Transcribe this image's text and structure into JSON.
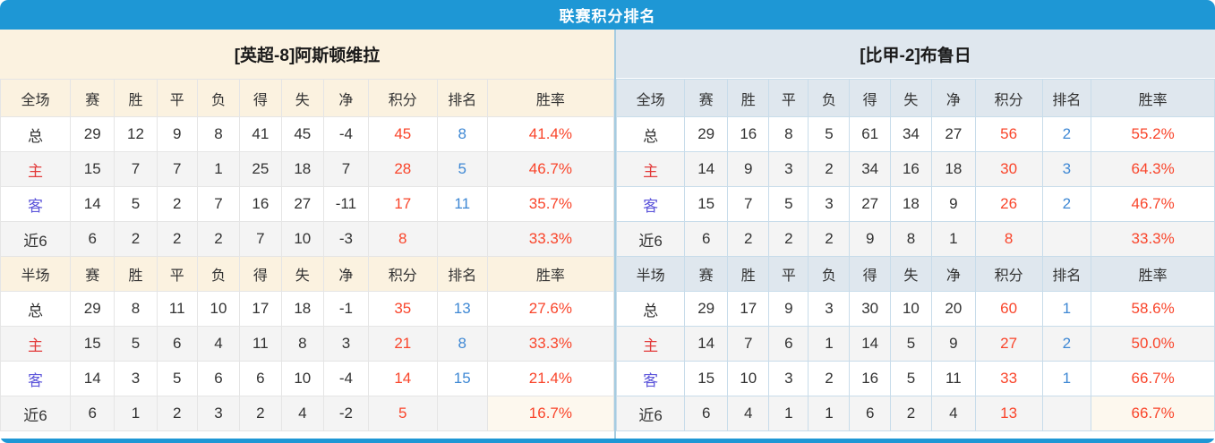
{
  "title": "联赛积分排名",
  "colors": {
    "accent_blue": "#1e97d5",
    "value_red": "#f9452b",
    "rank_blue": "#3f88d4",
    "home_label_red": "#e23a3a",
    "away_label_purple": "#5c55da",
    "left_panel_cream": "#fbf2e0",
    "right_panel_bluegray": "#dfe7ee",
    "row_stripe_gray": "#f4f4f4",
    "highlight_cream_cell": "#fdf8ee"
  },
  "columns_full": [
    "全场",
    "赛",
    "胜",
    "平",
    "负",
    "得",
    "失",
    "净",
    "积分",
    "排名",
    "胜率"
  ],
  "columns_half": [
    "半场",
    "赛",
    "胜",
    "平",
    "负",
    "得",
    "失",
    "净",
    "积分",
    "排名",
    "胜率"
  ],
  "teams": [
    {
      "name": "[英超-8]阿斯顿维拉",
      "full": {
        "rows": [
          {
            "label": "总",
            "type": "total",
            "cells": [
              29,
              12,
              9,
              8,
              41,
              45,
              "-4"
            ],
            "points": "45",
            "rank": "8",
            "rate": "41.4%"
          },
          {
            "label": "主",
            "type": "home",
            "cells": [
              15,
              7,
              7,
              1,
              25,
              18,
              "7"
            ],
            "points": "28",
            "rank": "5",
            "rate": "46.7%"
          },
          {
            "label": "客",
            "type": "away",
            "cells": [
              14,
              5,
              2,
              7,
              16,
              27,
              "-11"
            ],
            "points": "17",
            "rank": "11",
            "rate": "35.7%"
          },
          {
            "label": "近6",
            "type": "recent6",
            "cells": [
              6,
              2,
              2,
              2,
              7,
              10,
              "-3"
            ],
            "points": "8",
            "rank": "",
            "rate": "33.3%"
          }
        ]
      },
      "half": {
        "rows": [
          {
            "label": "总",
            "type": "total",
            "cells": [
              29,
              8,
              11,
              10,
              17,
              18,
              "-1"
            ],
            "points": "35",
            "rank": "13",
            "rate": "27.6%"
          },
          {
            "label": "主",
            "type": "home",
            "cells": [
              15,
              5,
              6,
              4,
              11,
              8,
              "3"
            ],
            "points": "21",
            "rank": "8",
            "rate": "33.3%"
          },
          {
            "label": "客",
            "type": "away",
            "cells": [
              14,
              3,
              5,
              6,
              6,
              10,
              "-4"
            ],
            "points": "14",
            "rank": "15",
            "rate": "21.4%"
          },
          {
            "label": "近6",
            "type": "recent6",
            "cells": [
              6,
              1,
              2,
              3,
              2,
              4,
              "-2"
            ],
            "points": "5",
            "rank": "",
            "rate": "16.7%"
          }
        ]
      }
    },
    {
      "name": "[比甲-2]布鲁日",
      "full": {
        "rows": [
          {
            "label": "总",
            "type": "total",
            "cells": [
              29,
              16,
              8,
              5,
              61,
              34,
              "27"
            ],
            "points": "56",
            "rank": "2",
            "rate": "55.2%"
          },
          {
            "label": "主",
            "type": "home",
            "cells": [
              14,
              9,
              3,
              2,
              34,
              16,
              "18"
            ],
            "points": "30",
            "rank": "3",
            "rate": "64.3%"
          },
          {
            "label": "客",
            "type": "away",
            "cells": [
              15,
              7,
              5,
              3,
              27,
              18,
              "9"
            ],
            "points": "26",
            "rank": "2",
            "rate": "46.7%"
          },
          {
            "label": "近6",
            "type": "recent6",
            "cells": [
              6,
              2,
              2,
              2,
              9,
              8,
              "1"
            ],
            "points": "8",
            "rank": "",
            "rate": "33.3%"
          }
        ]
      },
      "half": {
        "rows": [
          {
            "label": "总",
            "type": "total",
            "cells": [
              29,
              17,
              9,
              3,
              30,
              10,
              "20"
            ],
            "points": "60",
            "rank": "1",
            "rate": "58.6%"
          },
          {
            "label": "主",
            "type": "home",
            "cells": [
              14,
              7,
              6,
              1,
              14,
              5,
              "9"
            ],
            "points": "27",
            "rank": "2",
            "rate": "50.0%"
          },
          {
            "label": "客",
            "type": "away",
            "cells": [
              15,
              10,
              3,
              2,
              16,
              5,
              "11"
            ],
            "points": "33",
            "rank": "1",
            "rate": "66.7%"
          },
          {
            "label": "近6",
            "type": "recent6",
            "cells": [
              6,
              4,
              1,
              1,
              6,
              2,
              "4"
            ],
            "points": "13",
            "rank": "",
            "rate": "66.7%"
          }
        ]
      }
    }
  ]
}
